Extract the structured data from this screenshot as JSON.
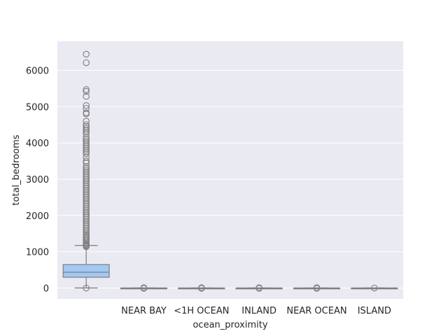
{
  "chart_data": {
    "type": "box",
    "title": "",
    "xlabel": "ocean_proximity",
    "ylabel": "total_bedrooms",
    "ylim": [
      -300,
      6800
    ],
    "yticks": [
      0,
      1000,
      2000,
      3000,
      4000,
      5000,
      6000
    ],
    "grid": true,
    "categories": [
      "",
      "NEAR BAY",
      "<1H OCEAN",
      "INLAND",
      "NEAR OCEAN",
      "ISLAND"
    ],
    "boxes": [
      {
        "category": "",
        "color": "#a1c9f4",
        "q1": 296,
        "median": 435,
        "q3": 647,
        "whisker_low": 1,
        "whisker_high": 1173,
        "outliers": [
          0,
          1140,
          1160,
          1180,
          1200,
          1230,
          1260,
          1300,
          1340,
          1380,
          1420,
          1460,
          1500,
          1550,
          1600,
          1650,
          1700,
          1750,
          1800,
          1850,
          1900,
          1950,
          2000,
          2050,
          2100,
          2150,
          2200,
          2250,
          2300,
          2350,
          2400,
          2450,
          2500,
          2550,
          2600,
          2650,
          2700,
          2750,
          2800,
          2850,
          2900,
          2950,
          3000,
          3050,
          3100,
          3150,
          3200,
          3250,
          3300,
          3350,
          3450,
          3500,
          3600,
          3700,
          3750,
          3800,
          3850,
          3900,
          3950,
          4000,
          4050,
          4100,
          4150,
          4250,
          4300,
          4350,
          4400,
          4450,
          4500,
          4600,
          4800,
          4830,
          4950,
          5030,
          5280,
          5420,
          5470,
          6210,
          6445
        ]
      },
      {
        "category": "NEAR BAY",
        "color": "#a1c9f4",
        "q1": 0,
        "median": 0,
        "q3": 0,
        "whisker_low": 0,
        "whisker_high": 0,
        "outliers": [
          0,
          8,
          -8
        ]
      },
      {
        "category": "<1H OCEAN",
        "color": "#a1c9f4",
        "q1": 0,
        "median": 0,
        "q3": 0,
        "whisker_low": 0,
        "whisker_high": 0,
        "outliers": [
          0,
          8,
          -8
        ]
      },
      {
        "category": "INLAND",
        "color": "#a1c9f4",
        "q1": 0,
        "median": 0,
        "q3": 0,
        "whisker_low": 0,
        "whisker_high": 0,
        "outliers": [
          0,
          8,
          -8
        ]
      },
      {
        "category": "NEAR OCEAN",
        "color": "#a1c9f4",
        "q1": 0,
        "median": 0,
        "q3": 0,
        "whisker_low": 0,
        "whisker_high": 0,
        "outliers": [
          0,
          8,
          -8
        ]
      },
      {
        "category": "ISLAND",
        "color": "#a1c9f4",
        "q1": 0,
        "median": 0,
        "q3": 0,
        "whisker_low": 0,
        "whisker_high": 0,
        "outliers": [
          0
        ]
      }
    ],
    "colors": {
      "background": "#eaeaf2",
      "grid": "#ffffff",
      "line": "#7f7f7f",
      "box_fill": "#a1c9f4"
    }
  }
}
